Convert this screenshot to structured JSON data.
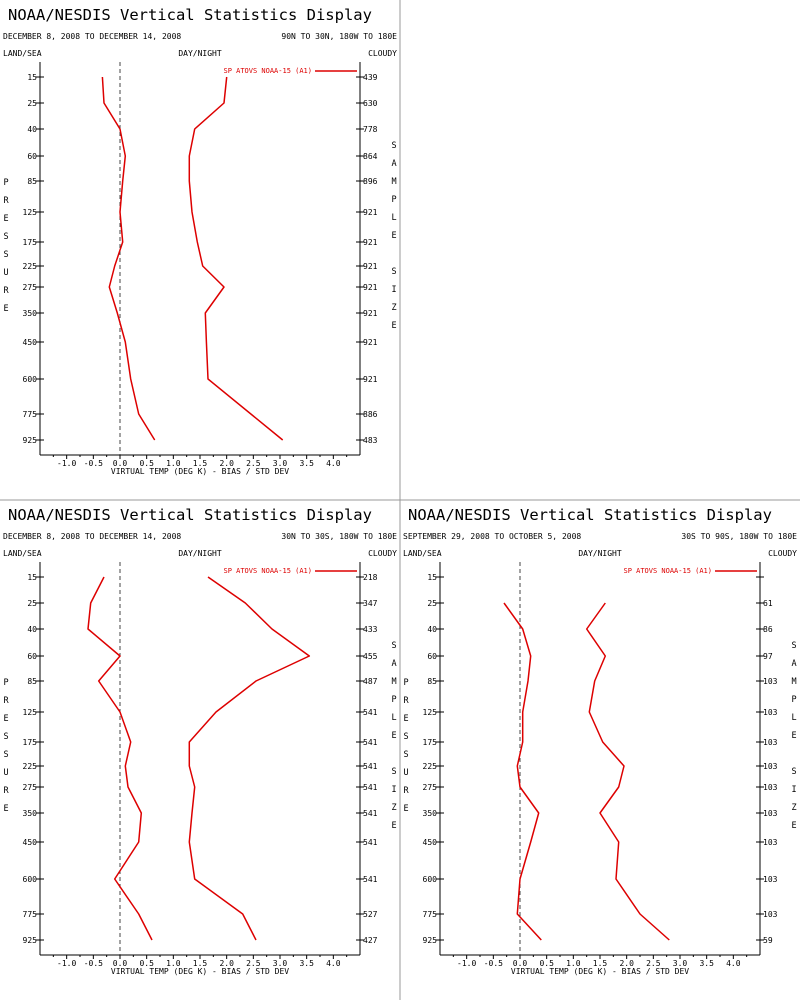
{
  "labels": {
    "land_sea": "LAND/SEA",
    "day_night": "DAY/NIGHT",
    "cloudy": "CLOUDY",
    "pressure_letters": [
      "P",
      "R",
      "E",
      "S",
      "S",
      "U",
      "R",
      "E"
    ],
    "sample_letters": [
      "S",
      "A",
      "M",
      "P",
      "L",
      "E",
      "",
      "S",
      "I",
      "Z",
      "E"
    ],
    "xlabel": "VIRTUAL TEMP (DEG K) - BIAS / STD DEV",
    "legend": "SP ATOVS NOAA-15 (A1)"
  },
  "colors": {
    "series": "#dd0000",
    "axis": "#000000",
    "zero_line": "#444444",
    "divider": "#999999"
  },
  "chart_data": [
    {
      "type": "line",
      "title": "NOAA/NESDIS Vertical Statistics Display",
      "date_range": "DECEMBER 8, 2008 TO DECEMBER 14, 2008",
      "region": "90N TO 30N, 180W TO 180E",
      "pressure_levels": [
        15,
        25,
        40,
        60,
        85,
        125,
        175,
        225,
        275,
        350,
        450,
        600,
        775,
        925
      ],
      "sample_size": [
        "439",
        "630",
        "778",
        "864",
        "896",
        "921",
        "921",
        "921",
        "921",
        "921",
        "921",
        "921",
        "886",
        "483"
      ],
      "x_ticks": [
        "-1.0",
        "-0.5",
        "0.0",
        "0.5",
        "1.0",
        "1.5",
        "2.0",
        "2.5",
        "3.0",
        "3.5",
        "4.0"
      ],
      "xlim": [
        -1.5,
        4.5
      ],
      "series": [
        {
          "name": "bias",
          "values": [
            -0.33,
            -0.3,
            0.0,
            0.1,
            0.05,
            0.0,
            0.05,
            -0.1,
            -0.2,
            -0.05,
            0.1,
            0.2,
            0.35,
            0.65
          ]
        },
        {
          "name": "std dev",
          "values": [
            2.0,
            1.95,
            1.4,
            1.3,
            1.3,
            1.35,
            1.45,
            1.55,
            1.95,
            1.6,
            1.62,
            1.65,
            null,
            3.05
          ]
        }
      ]
    },
    {
      "type": "line",
      "title": "NOAA/NESDIS Vertical Statistics Display",
      "date_range": "DECEMBER 8, 2008 TO DECEMBER 14, 2008",
      "region": "30N TO 30S, 180W TO 180E",
      "pressure_levels": [
        15,
        25,
        40,
        60,
        85,
        125,
        175,
        225,
        275,
        350,
        450,
        600,
        775,
        925
      ],
      "sample_size": [
        "218",
        "347",
        "433",
        "455",
        "487",
        "541",
        "541",
        "541",
        "541",
        "541",
        "541",
        "541",
        "527",
        "427"
      ],
      "x_ticks": [
        "-1.0",
        "-0.5",
        "0.0",
        "0.5",
        "1.0",
        "1.5",
        "2.0",
        "2.5",
        "3.0",
        "3.5",
        "4.0"
      ],
      "xlim": [
        -1.5,
        4.5
      ],
      "series": [
        {
          "name": "bias",
          "values": [
            -0.3,
            -0.55,
            -0.6,
            0.0,
            -0.4,
            0.0,
            0.2,
            0.1,
            0.15,
            0.4,
            0.35,
            -0.1,
            0.35,
            0.6
          ]
        },
        {
          "name": "std dev",
          "values": [
            1.65,
            2.35,
            2.85,
            3.55,
            2.55,
            1.8,
            1.3,
            1.3,
            1.4,
            1.35,
            1.3,
            1.4,
            2.3,
            2.55
          ]
        }
      ]
    },
    {
      "type": "line",
      "title": "NOAA/NESDIS Vertical Statistics Display",
      "date_range": "SEPTEMBER 29, 2008 TO OCTOBER 5, 2008",
      "region": "30S TO 90S, 180W TO 180E",
      "pressure_levels": [
        15,
        25,
        40,
        60,
        85,
        125,
        175,
        225,
        275,
        350,
        450,
        600,
        775,
        925
      ],
      "sample_size": [
        "",
        "61",
        "86",
        "97",
        "103",
        "103",
        "103",
        "103",
        "103",
        "103",
        "103",
        "103",
        "103",
        "59"
      ],
      "x_ticks": [
        "-1.0",
        "-0.5",
        "0.0",
        "0.5",
        "1.0",
        "1.5",
        "2.0",
        "2.5",
        "3.0",
        "3.5",
        "4.0"
      ],
      "xlim": [
        -1.5,
        4.5
      ],
      "series": [
        {
          "name": "bias",
          "values": [
            null,
            -0.3,
            0.05,
            0.2,
            0.15,
            0.05,
            0.05,
            -0.05,
            0.0,
            0.35,
            0.2,
            0.0,
            -0.05,
            0.4
          ]
        },
        {
          "name": "std dev",
          "values": [
            null,
            1.6,
            1.25,
            1.6,
            1.4,
            1.3,
            1.55,
            1.95,
            1.85,
            1.5,
            1.85,
            1.8,
            2.25,
            2.8
          ]
        }
      ]
    }
  ]
}
